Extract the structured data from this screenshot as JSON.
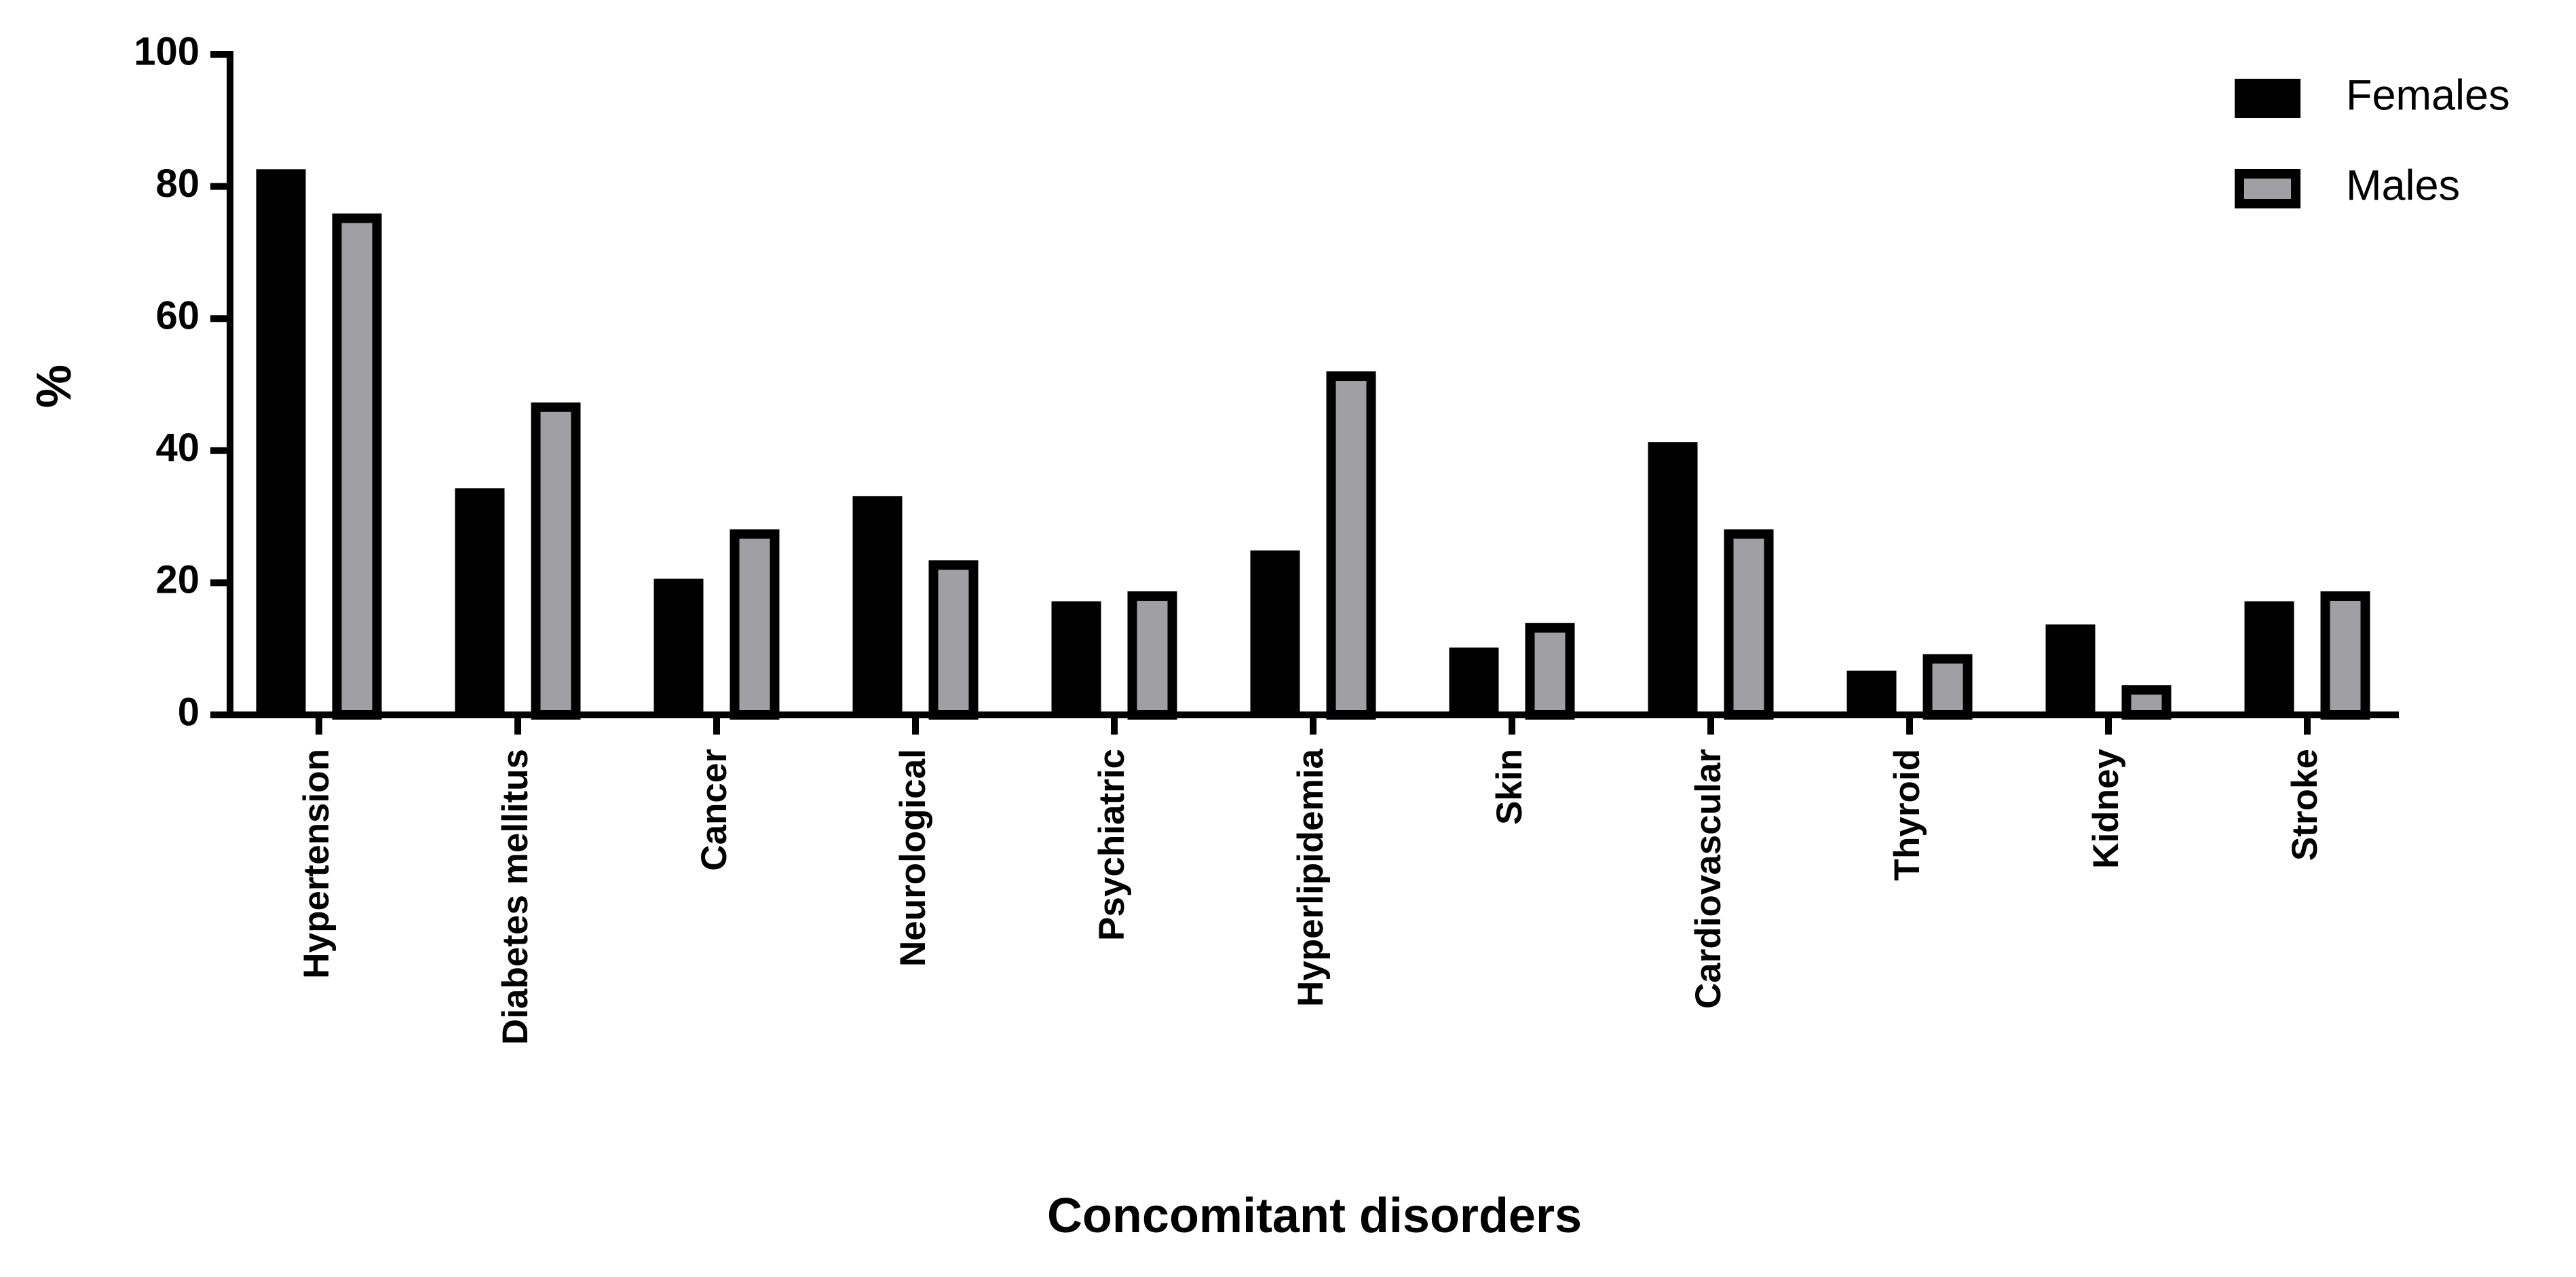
{
  "chart_data": {
    "type": "bar",
    "x_label": "Concomitant disorders",
    "y_label": "%",
    "categories": [
      "Hypertension",
      "Diabetes mellitus",
      "Cancer",
      "Neurological",
      "Psychiatric",
      "Hyperlipidemia",
      "Skin",
      "Cardiovascular",
      "Thyroid",
      "Kidney",
      "Stroke"
    ],
    "series": [
      {
        "name": "Females",
        "color": "#000000",
        "values": [
          82.6,
          34.3,
          20.6,
          33.1,
          17.2,
          24.9,
          10.2,
          41.3,
          6.7,
          13.7,
          17.2
        ]
      },
      {
        "name": "Males",
        "color": "#a0a0a4",
        "values": [
          75.9,
          47.3,
          28.1,
          23.4,
          18.7,
          52.0,
          13.9,
          28.1,
          9.2,
          4.5,
          18.7
        ]
      }
    ],
    "ylim": [
      0,
      100
    ],
    "yticks": [
      0,
      20,
      40,
      60,
      80,
      100
    ],
    "grid": false,
    "legend": "top-right"
  }
}
